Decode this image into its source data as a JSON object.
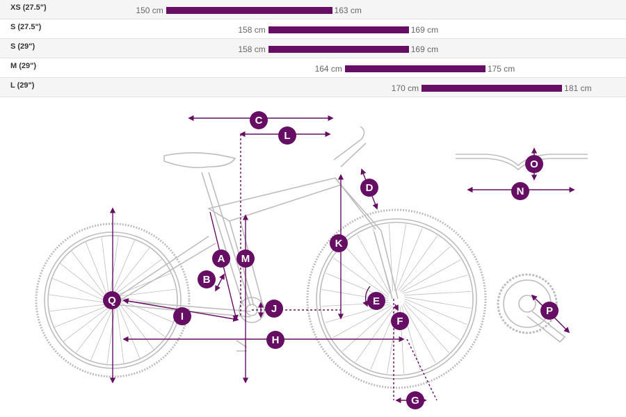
{
  "accent_color": "#660e63",
  "frame_color": "#bdbdbd",
  "chart_data": {
    "type": "bar",
    "orientation": "horizontal-range",
    "unit": "cm",
    "categories": [
      "XS (27.5\")",
      "S (27.5\")",
      "S (29\")",
      "M (29\")",
      "L (29\")"
    ],
    "series": [
      {
        "values": [
          [
            150,
            163
          ],
          [
            158,
            169
          ],
          [
            158,
            169
          ],
          [
            164,
            175
          ],
          [
            170,
            181
          ]
        ]
      }
    ],
    "xlim": [
      137,
      186
    ],
    "grid": false,
    "legend": "none"
  },
  "size_rows": [
    {
      "label": "XS (27.5\")",
      "min_text": "150 cm",
      "max_text": "163 cm"
    },
    {
      "label": "S (27.5\")",
      "min_text": "158 cm",
      "max_text": "169 cm"
    },
    {
      "label": "S (29\")",
      "min_text": "158 cm",
      "max_text": "169 cm"
    },
    {
      "label": "M (29\")",
      "min_text": "164 cm",
      "max_text": "175 cm"
    },
    {
      "label": "L (29\")",
      "min_text": "170 cm",
      "max_text": "181 cm"
    }
  ],
  "geometry_labels": {
    "A": "A",
    "B": "B",
    "C": "C",
    "D": "D",
    "E": "E",
    "F": "F",
    "G": "G",
    "H": "H",
    "I": "I",
    "J": "J",
    "K": "K",
    "L": "L",
    "M": "M",
    "N": "N",
    "O": "O",
    "P": "P",
    "Q": "Q"
  }
}
